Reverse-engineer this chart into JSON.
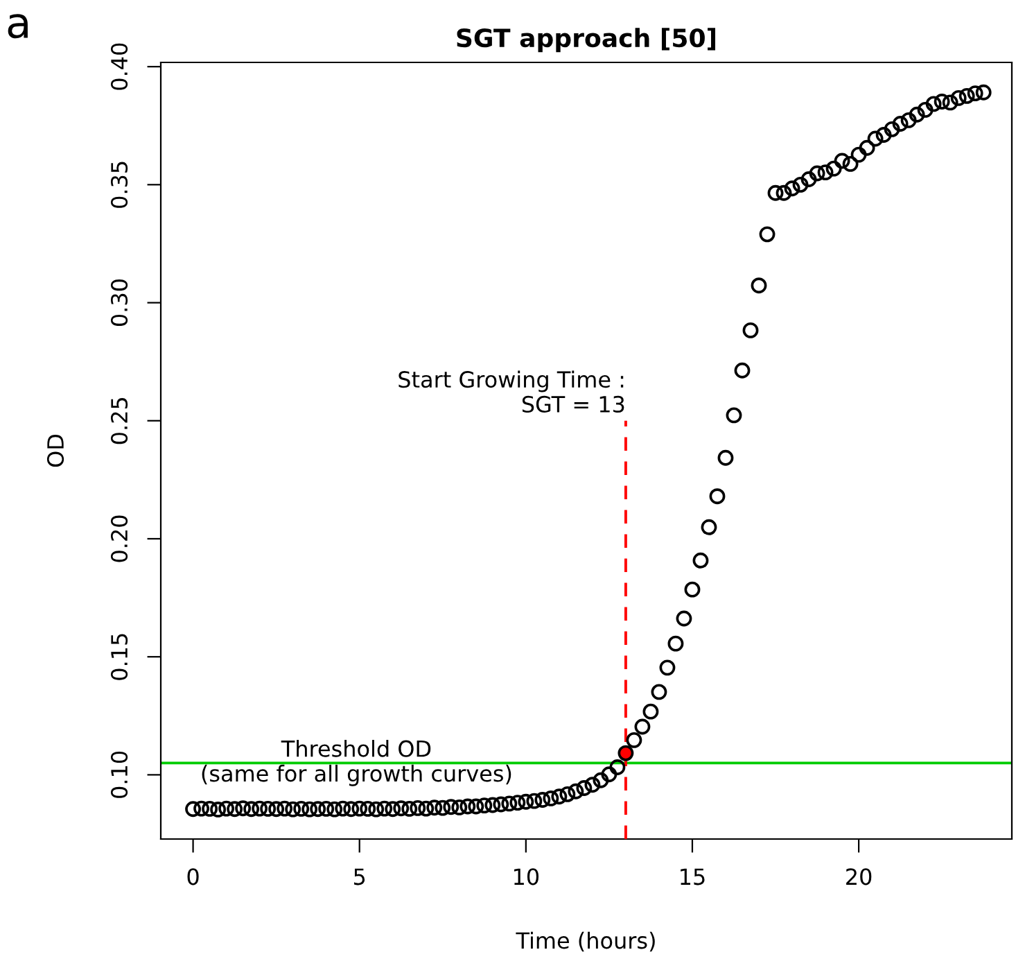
{
  "chart_data": {
    "type": "scatter",
    "title": "SGT approach [50]",
    "xlabel": "Time (hours)",
    "ylabel": "OD",
    "x": [
      0,
      0.25,
      0.5,
      0.75,
      1,
      1.25,
      1.5,
      1.75,
      2,
      2.25,
      2.5,
      2.75,
      3,
      3.25,
      3.5,
      3.75,
      4,
      4.25,
      4.5,
      4.75,
      5,
      5.25,
      5.5,
      5.75,
      6,
      6.25,
      6.5,
      6.75,
      7,
      7.25,
      7.5,
      7.75,
      8,
      8.25,
      8.5,
      8.75,
      9,
      9.25,
      9.5,
      9.75,
      10,
      10.25,
      10.5,
      10.75,
      11,
      11.25,
      11.5,
      11.75,
      12,
      12.25,
      12.5,
      12.75,
      13,
      13.25,
      13.5,
      13.75,
      14,
      14.25,
      14.5,
      14.75,
      15,
      15.25,
      15.5,
      15.75,
      16,
      16.25,
      16.5,
      16.75,
      17,
      17.25,
      17.5,
      17.75,
      18,
      18.25,
      18.5,
      18.75,
      19,
      19.25,
      19.5,
      19.75,
      20,
      20.25,
      20.5,
      20.75,
      21,
      21.25,
      21.5,
      21.75,
      22,
      22.25,
      22.5,
      22.75,
      23,
      23.25,
      23.5,
      23.75
    ],
    "series": [
      {
        "type": "scatter",
        "color": "#000000",
        "marker": "circle",
        "values": [
          0.0855,
          0.0857,
          0.0856,
          0.0853,
          0.0857,
          0.0855,
          0.0858,
          0.0855,
          0.0857,
          0.0856,
          0.0855,
          0.0857,
          0.0854,
          0.0856,
          0.0854,
          0.0855,
          0.0856,
          0.0854,
          0.0857,
          0.0855,
          0.0857,
          0.0856,
          0.0854,
          0.0857,
          0.0855,
          0.0858,
          0.0856,
          0.0859,
          0.0857,
          0.0861,
          0.086,
          0.0864,
          0.0862,
          0.0866,
          0.0866,
          0.087,
          0.0872,
          0.0875,
          0.0878,
          0.0882,
          0.0886,
          0.0889,
          0.0894,
          0.09,
          0.0908,
          0.0918,
          0.093,
          0.0944,
          0.0958,
          0.0977,
          0.1002,
          0.1032,
          null,
          0.1147,
          0.1204,
          0.1268,
          0.1351,
          0.1454,
          0.1556,
          0.1662,
          0.1785,
          0.1908,
          0.2049,
          0.218,
          0.2343,
          0.2523,
          0.2713,
          0.2883,
          0.3073,
          0.329,
          0.3465,
          0.3465,
          0.3484,
          0.35,
          0.3523,
          0.3548,
          0.3552,
          0.3568,
          0.3601,
          0.3588,
          0.3627,
          0.3656,
          0.3695,
          0.3711,
          0.3735,
          0.3758,
          0.3773,
          0.3797,
          0.3817,
          0.3842,
          0.3852,
          0.3848,
          0.3867,
          0.3876,
          0.3887,
          0.3891
        ]
      },
      {
        "type": "scatter",
        "color": "#ff0000",
        "marker": "circle",
        "values": [
          null,
          null,
          null,
          null,
          null,
          null,
          null,
          null,
          null,
          null,
          null,
          null,
          null,
          null,
          null,
          null,
          null,
          null,
          null,
          null,
          null,
          null,
          null,
          null,
          null,
          null,
          null,
          null,
          null,
          null,
          null,
          null,
          null,
          null,
          null,
          null,
          null,
          null,
          null,
          null,
          null,
          null,
          null,
          null,
          null,
          null,
          null,
          null,
          null,
          null,
          null,
          null,
          0.1092,
          null,
          null,
          null,
          null,
          null,
          null,
          null,
          null,
          null,
          null,
          null,
          null,
          null,
          null,
          null,
          null,
          null,
          null,
          null,
          null,
          null,
          null,
          null,
          null,
          null,
          null,
          null,
          null,
          null,
          null,
          null,
          null,
          null,
          null,
          null,
          null,
          null,
          null,
          null,
          null,
          null,
          null,
          null
        ]
      },
      {
        "type": "line",
        "color": "#ff0000",
        "line_style": "dashed",
        "marker": "none",
        "x": [
          13,
          13
        ],
        "values": [
          0.0728,
          0.25
        ]
      }
    ],
    "ref_lines": [
      {
        "axis": "y",
        "value": 0.105,
        "label": "Threshold OD\n(same for all growth curves)",
        "color": "#00cc00",
        "line_style": "solid"
      }
    ],
    "annotations": [
      "a",
      {
        "text": "Start Growing Time :\nSGT = 13",
        "x": 13,
        "y": 0.25
      }
    ],
    "xlim": [
      -0.97,
      24.6
    ],
    "xticks": [
      0,
      5,
      10,
      15,
      20
    ],
    "ylim": [
      0.0728,
      0.4018
    ],
    "yticks": [
      {
        "value": 0.1,
        "label": "0.10"
      },
      {
        "value": 0.15,
        "label": "0.15"
      },
      {
        "value": 0.2,
        "label": "0.20"
      },
      {
        "value": 0.25,
        "label": "0.25"
      },
      {
        "value": 0.3,
        "label": "0.30"
      },
      {
        "value": 0.35,
        "label": "0.35"
      },
      {
        "value": 0.4,
        "label": "0.40"
      }
    ],
    "grid": false,
    "legend": false
  }
}
